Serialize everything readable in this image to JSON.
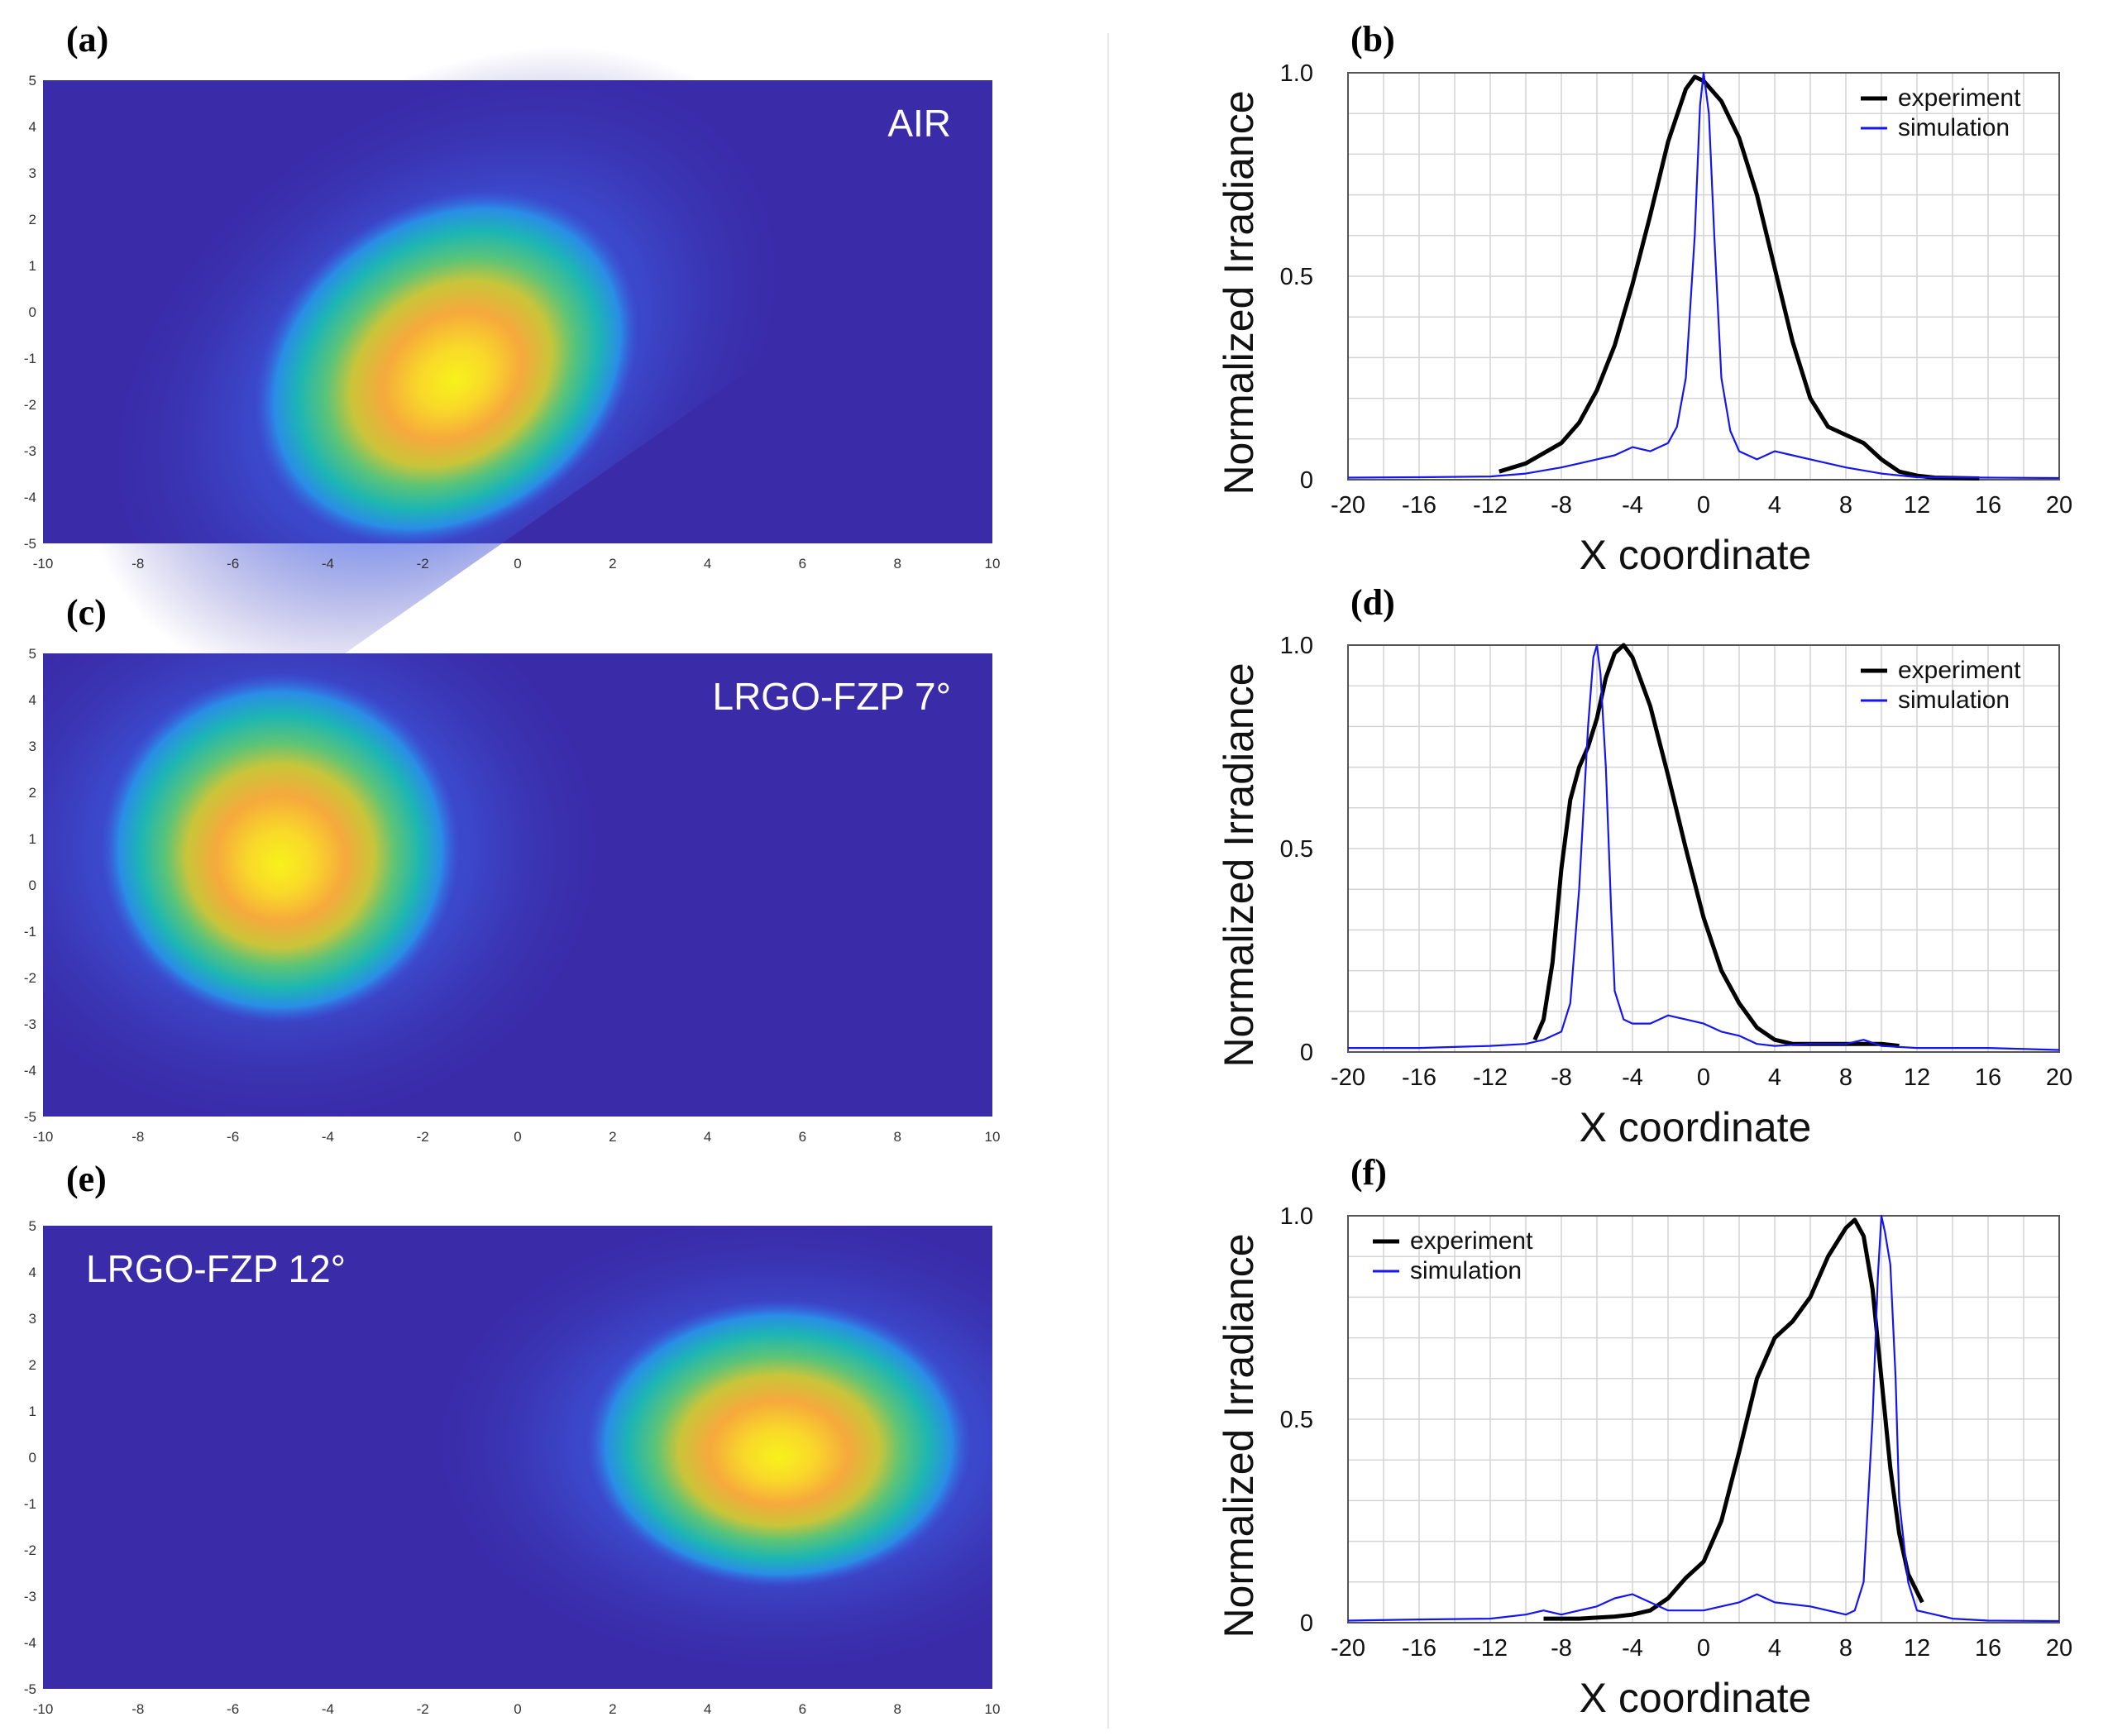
{
  "panels": [
    {
      "label": "(a)",
      "type": "heatmap",
      "title": "AIR",
      "title_pos": "top-right",
      "hotspot": {
        "x": -1.5,
        "y": -1.2,
        "sx": 3.2,
        "sy": 2.6,
        "rot_deg": 35
      }
    },
    {
      "label": "(c)",
      "type": "heatmap",
      "title": "LRGO-FZP 7°",
      "title_pos": "top-right",
      "hotspot": {
        "x": -5.0,
        "y": 0.8,
        "sx": 2.8,
        "sy": 2.8,
        "rot_deg": 0
      }
    },
    {
      "label": "(e)",
      "type": "heatmap",
      "title": "LRGO-FZP 12°",
      "title_pos": "top-left",
      "hotspot": {
        "x": 5.5,
        "y": 0.3,
        "sx": 3.0,
        "sy": 2.3,
        "rot_deg": 0
      }
    }
  ],
  "heatmap_axes": {
    "x_ticks": [
      "-10",
      "-8",
      "-6",
      "-4",
      "-2",
      "0",
      "2",
      "4",
      "6",
      "8",
      "10"
    ],
    "y_ticks": [
      "5",
      "4",
      "3",
      "2",
      "1",
      "0",
      "-1",
      "-2",
      "-3",
      "-4",
      "-5"
    ],
    "xlim": [
      -10,
      10
    ],
    "ylim": [
      -5,
      5
    ]
  },
  "colors": {
    "experiment": "#000000",
    "simulation": "#1515ee",
    "heat_low": "#3a2ba8",
    "heat_high": "#f7f21b"
  },
  "chart_data": [
    {
      "label": "(b)",
      "type": "line",
      "xlabel": "X   coordinate",
      "ylabel": "Normalized Irradiance",
      "xlim": [
        -20,
        20
      ],
      "ylim": [
        0,
        1.0
      ],
      "x_ticks": [
        "-20",
        "-16",
        "-12",
        "-8",
        "-4",
        "0",
        "4",
        "8",
        "12",
        "16",
        "20"
      ],
      "y_ticks": [
        "0",
        "0.5",
        "1.0"
      ],
      "legend": "top-right",
      "series": [
        {
          "name": "experiment",
          "x": [
            -11.5,
            -10,
            -8,
            -7,
            -6,
            -5,
            -4,
            -3,
            -2,
            -1,
            -0.5,
            0,
            1,
            2,
            3,
            4,
            5,
            6,
            7,
            8,
            9,
            10,
            11,
            12,
            13,
            15.5
          ],
          "y": [
            0.02,
            0.04,
            0.09,
            0.14,
            0.22,
            0.33,
            0.48,
            0.65,
            0.83,
            0.96,
            0.99,
            0.98,
            0.93,
            0.84,
            0.7,
            0.52,
            0.34,
            0.2,
            0.13,
            0.11,
            0.09,
            0.05,
            0.02,
            0.01,
            0.005,
            0.003
          ]
        },
        {
          "name": "simulation",
          "x": [
            -20,
            -16,
            -12,
            -10,
            -8,
            -6,
            -5,
            -4,
            -3,
            -2,
            -1.5,
            -1,
            -0.5,
            -0.2,
            0,
            0.3,
            0.6,
            1,
            1.5,
            2,
            3,
            4,
            5,
            6,
            8,
            10,
            12,
            16,
            20
          ],
          "y": [
            0.005,
            0.006,
            0.008,
            0.015,
            0.03,
            0.05,
            0.06,
            0.08,
            0.07,
            0.09,
            0.13,
            0.25,
            0.6,
            0.92,
            1.0,
            0.9,
            0.6,
            0.25,
            0.12,
            0.07,
            0.05,
            0.07,
            0.06,
            0.05,
            0.03,
            0.015,
            0.006,
            0.005,
            0.004
          ]
        }
      ]
    },
    {
      "label": "(d)",
      "type": "line",
      "xlabel": "X   coordinate",
      "ylabel": "Normalized Irradiance",
      "xlim": [
        -20,
        20
      ],
      "ylim": [
        0,
        1.0
      ],
      "x_ticks": [
        "-20",
        "-16",
        "-12",
        "-8",
        "-4",
        "0",
        "4",
        "8",
        "12",
        "16",
        "20"
      ],
      "y_ticks": [
        "0",
        "0.5",
        "1.0"
      ],
      "legend": "top-right",
      "series": [
        {
          "name": "experiment",
          "x": [
            -9.5,
            -9,
            -8.5,
            -8,
            -7.5,
            -7,
            -6.5,
            -6,
            -5.5,
            -5,
            -4.5,
            -4,
            -3,
            -2,
            -1,
            0,
            1,
            2,
            3,
            4,
            5,
            6,
            8,
            10,
            11
          ],
          "y": [
            0.03,
            0.08,
            0.22,
            0.45,
            0.62,
            0.7,
            0.75,
            0.82,
            0.92,
            0.98,
            1.0,
            0.97,
            0.85,
            0.68,
            0.5,
            0.33,
            0.2,
            0.12,
            0.06,
            0.03,
            0.02,
            0.02,
            0.02,
            0.02,
            0.015
          ]
        },
        {
          "name": "simulation",
          "x": [
            -20,
            -16,
            -12,
            -10,
            -9,
            -8,
            -7.5,
            -7,
            -6.5,
            -6.2,
            -6,
            -5.8,
            -5.5,
            -5.2,
            -5,
            -4.5,
            -4,
            -3,
            -2,
            -1,
            0,
            1,
            2,
            3,
            4,
            6,
            8,
            9,
            10,
            12,
            16,
            20
          ],
          "y": [
            0.01,
            0.01,
            0.015,
            0.02,
            0.03,
            0.05,
            0.12,
            0.4,
            0.8,
            0.97,
            1.0,
            0.93,
            0.7,
            0.35,
            0.15,
            0.08,
            0.07,
            0.07,
            0.09,
            0.08,
            0.07,
            0.05,
            0.04,
            0.02,
            0.015,
            0.02,
            0.02,
            0.03,
            0.015,
            0.01,
            0.01,
            0.005
          ]
        }
      ]
    },
    {
      "label": "(f)",
      "type": "line",
      "xlabel": "X   coordinate",
      "ylabel": "Normalized Irradiance",
      "xlim": [
        -20,
        20
      ],
      "ylim": [
        0,
        1.0
      ],
      "x_ticks": [
        "-20",
        "-16",
        "-12",
        "-8",
        "-4",
        "0",
        "4",
        "8",
        "12",
        "16",
        "20"
      ],
      "y_ticks": [
        "0",
        "0.5",
        "1.0"
      ],
      "legend": "top-left",
      "series": [
        {
          "name": "experiment",
          "x": [
            -9,
            -7,
            -5,
            -4,
            -3,
            -2,
            -1,
            0,
            1,
            2,
            3,
            4,
            5,
            6,
            7,
            8,
            8.5,
            9,
            9.5,
            10,
            10.5,
            11,
            11.5,
            12.3
          ],
          "y": [
            0.01,
            0.01,
            0.015,
            0.02,
            0.03,
            0.06,
            0.11,
            0.15,
            0.25,
            0.42,
            0.6,
            0.7,
            0.74,
            0.8,
            0.9,
            0.97,
            0.99,
            0.95,
            0.82,
            0.6,
            0.38,
            0.22,
            0.12,
            0.05
          ]
        },
        {
          "name": "simulation",
          "x": [
            -20,
            -16,
            -12,
            -10,
            -9,
            -8,
            -6,
            -5,
            -4,
            -3,
            -2,
            0,
            2,
            3,
            4,
            6,
            8,
            8.5,
            9,
            9.5,
            9.8,
            10,
            10.2,
            10.5,
            10.8,
            11,
            11.5,
            12,
            14,
            16,
            20
          ],
          "y": [
            0.005,
            0.008,
            0.01,
            0.02,
            0.03,
            0.02,
            0.04,
            0.06,
            0.07,
            0.05,
            0.03,
            0.03,
            0.05,
            0.07,
            0.05,
            0.04,
            0.02,
            0.03,
            0.1,
            0.5,
            0.85,
            1.0,
            0.96,
            0.88,
            0.6,
            0.3,
            0.1,
            0.03,
            0.01,
            0.005,
            0.004
          ]
        }
      ]
    }
  ]
}
